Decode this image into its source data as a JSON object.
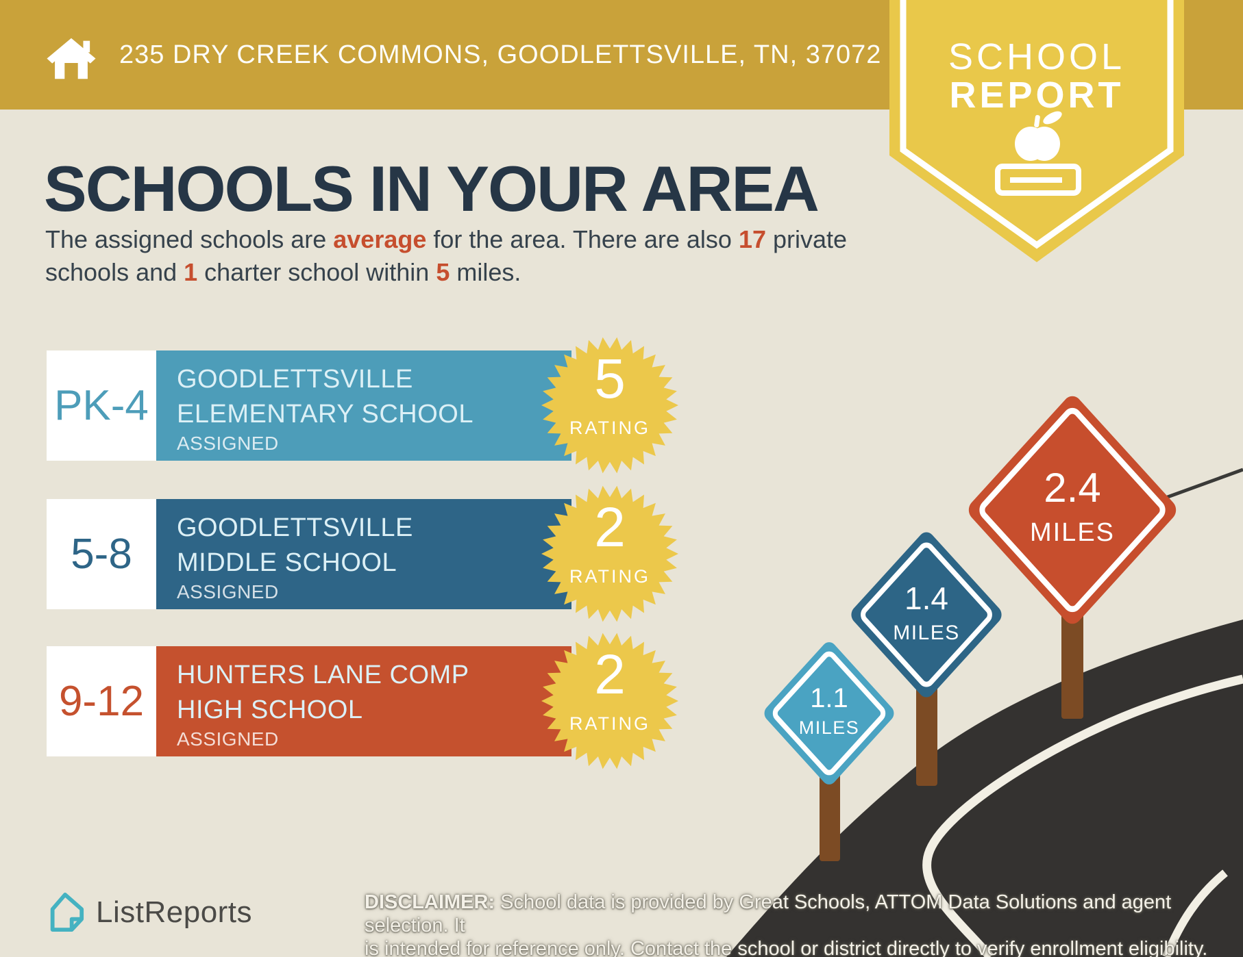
{
  "header": {
    "address": "235 DRY CREEK COMMONS, GOODLETTSVILLE, TN, 37072"
  },
  "report_badge": {
    "line1": "SCHOOL",
    "line2": "REPORT"
  },
  "title": "SCHOOLS IN YOUR AREA",
  "subtitle": {
    "s1": "The assigned schools are ",
    "s2": "average",
    "s3": " for the area. There are also ",
    "s4": "17",
    "s5": " private schools and ",
    "s6": "1",
    "s7": " charter school within ",
    "s8": "5",
    "s9": " miles."
  },
  "schools": [
    {
      "grades": "PK-4",
      "name_line1": "GOODLETTSVILLE",
      "name_line2": "ELEMENTARY SCHOOL",
      "status": "ASSIGNED",
      "rating": "5",
      "rating_label": "RATING"
    },
    {
      "grades": "5-8",
      "name_line1": "GOODLETTSVILLE",
      "name_line2": "MIDDLE SCHOOL",
      "status": "ASSIGNED",
      "rating": "2",
      "rating_label": "RATING"
    },
    {
      "grades": "9-12",
      "name_line1": "HUNTERS LANE COMP",
      "name_line2": "HIGH SCHOOL",
      "status": "ASSIGNED",
      "rating": "2",
      "rating_label": "RATING"
    }
  ],
  "signs": [
    {
      "distance": "1.1",
      "unit": "MILES"
    },
    {
      "distance": "1.4",
      "unit": "MILES"
    },
    {
      "distance": "2.4",
      "unit": "MILES"
    }
  ],
  "footer": {
    "brand": "ListReports",
    "disclaimer_label": "DISCLAIMER:",
    "disclaimer_line1_rest": " School data is provided by Great Schools, ATTOM Data Solutions and agent selection. It",
    "disclaimer_line2": "is intended for reference only. Contact the school or district directly to verify enrollment eligibility."
  },
  "colors": {
    "banner_gold": "#c9a23a",
    "pennant_yellow": "#e9c84a",
    "starburst_yellow": "#ecc84b",
    "background_beige": "#e8e4d7",
    "title_navy": "#263646",
    "body_text": "#36424c",
    "accent_red": "#c64e2e",
    "row1_blue": "#4d9db9",
    "row2_blue": "#2e6587",
    "row3_red": "#c5512e",
    "sign_light_blue": "#4aa3c2",
    "sign_dark_blue": "#2d6586",
    "sign_red": "#c74e2d",
    "post_brown": "#7c4b24",
    "road_dark": "#343230",
    "brand_teal": "#45b2c1",
    "brand_gray": "#4b4a47"
  }
}
